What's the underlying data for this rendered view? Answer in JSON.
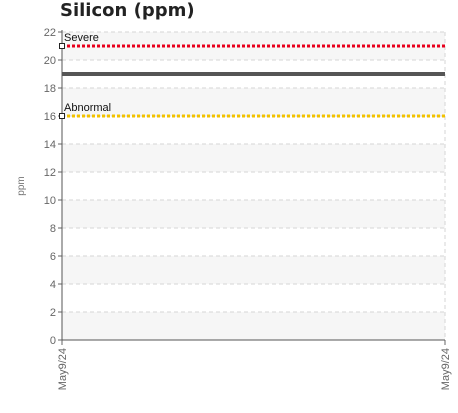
{
  "chart_data": {
    "type": "line",
    "title": "Silicon (ppm)",
    "ylabel": "ppm",
    "xlabel": "",
    "ylim": [
      0,
      22
    ],
    "yticks": [
      0,
      2,
      4,
      6,
      8,
      10,
      12,
      14,
      16,
      18,
      20,
      22
    ],
    "x_ticks": [
      "May9/24",
      "May9/24"
    ],
    "grid": true,
    "series": [
      {
        "values": [
          19,
          19
        ],
        "color": "#555555"
      }
    ],
    "thresholds": [
      {
        "name": "Severe",
        "value": 21,
        "color": "#e8001c"
      },
      {
        "name": "Abnormal",
        "value": 16,
        "color": "#f2c200"
      }
    ]
  }
}
